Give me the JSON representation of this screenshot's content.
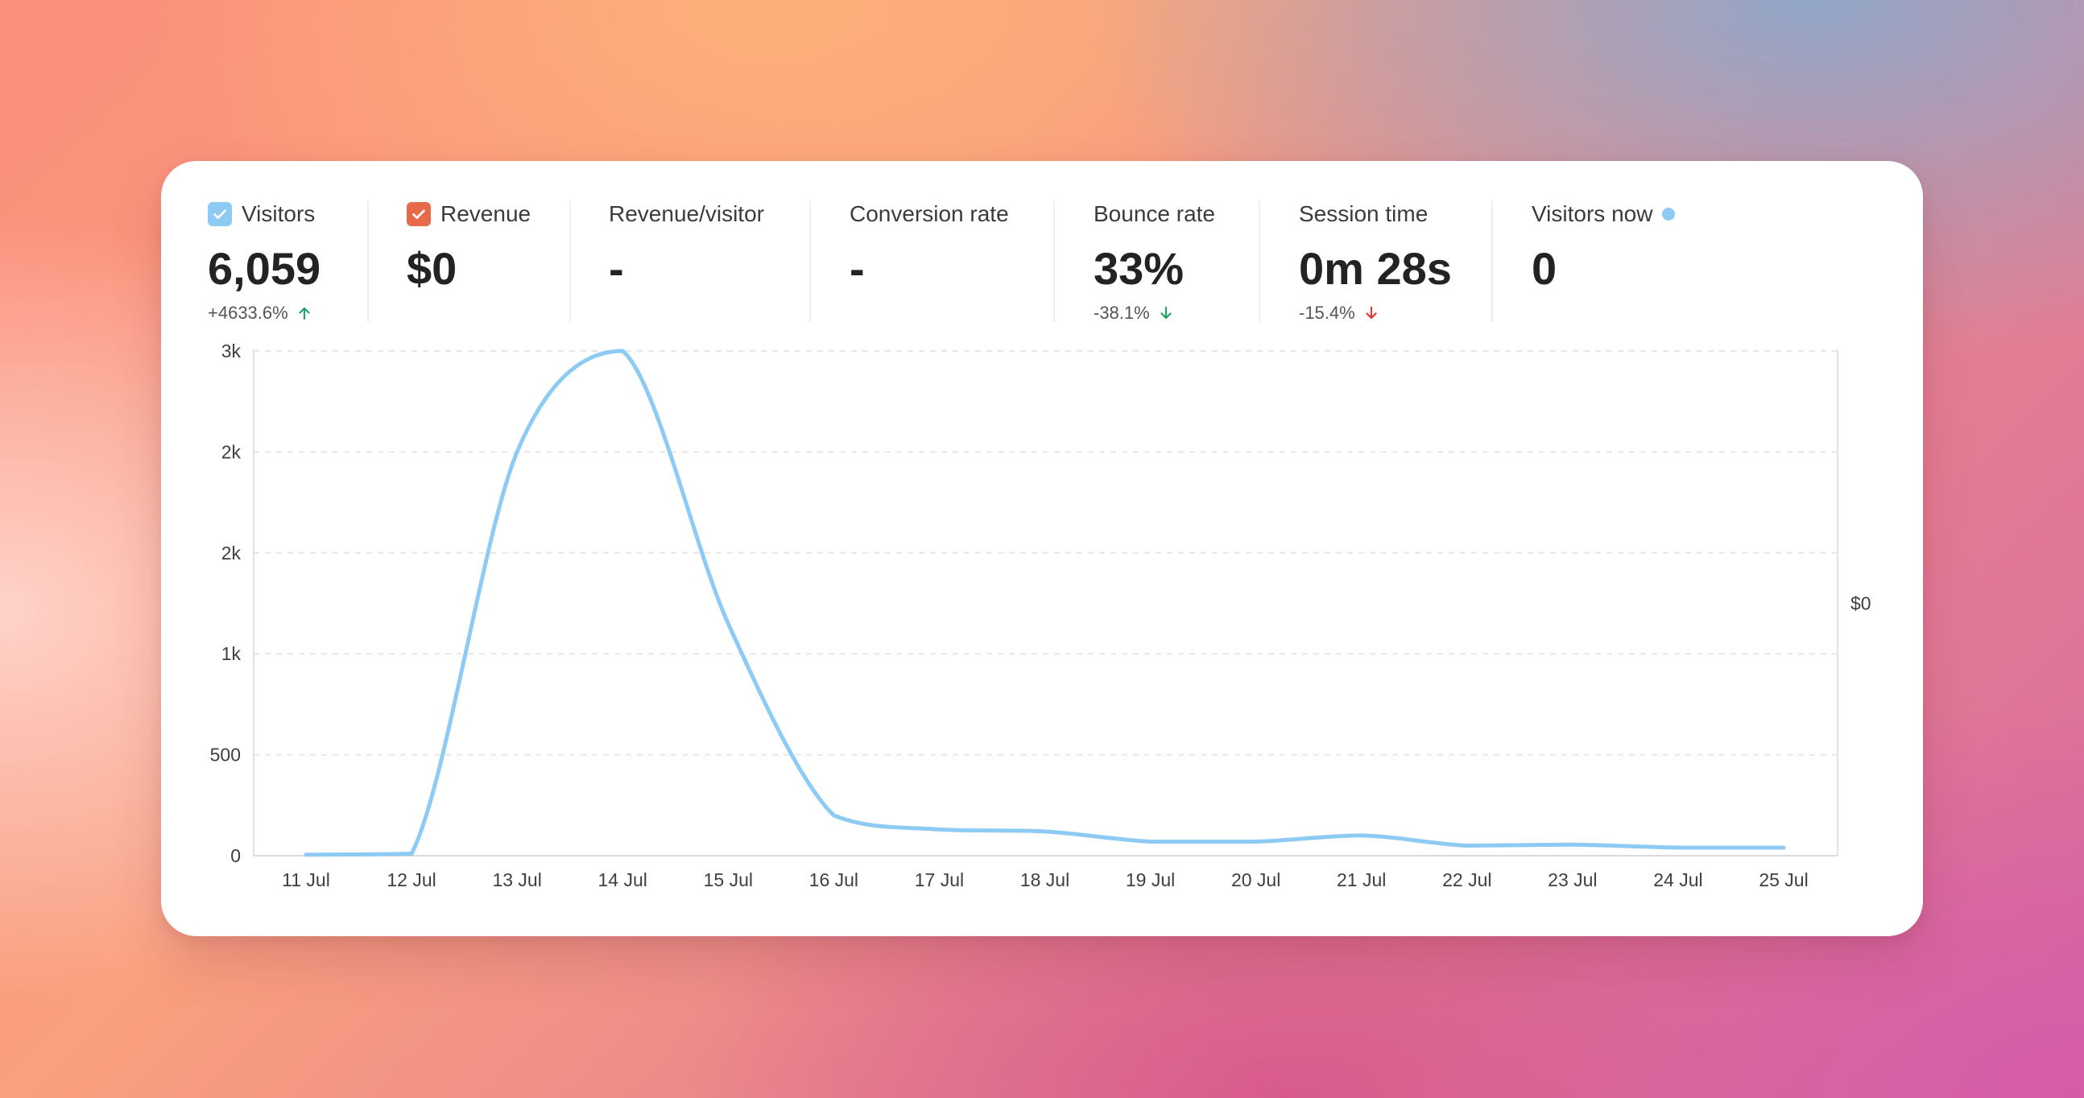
{
  "colors": {
    "visitors_accent": "#8ecbf4",
    "revenue_accent": "#e76a4a",
    "delta_up": "#1fa463",
    "delta_down_bad": "#d93a3a",
    "live_dot": "#8ecbf4"
  },
  "metrics": {
    "visitors": {
      "label": "Visitors",
      "value": "6,059",
      "delta": "+4633.6%",
      "delta_direction": "up",
      "checked": true
    },
    "revenue": {
      "label": "Revenue",
      "value": "$0",
      "checked": true
    },
    "revenue_per_visitor": {
      "label": "Revenue/visitor",
      "value": "-"
    },
    "conversion_rate": {
      "label": "Conversion rate",
      "value": "-"
    },
    "bounce_rate": {
      "label": "Bounce rate",
      "value": "33%",
      "delta": "-38.1%",
      "delta_direction": "down"
    },
    "session_time": {
      "label": "Session time",
      "value": "0m 28s",
      "delta": "-15.4%",
      "delta_direction": "down"
    },
    "visitors_now": {
      "label": "Visitors now",
      "value": "0"
    }
  },
  "chart_data": {
    "type": "line",
    "x": [
      "11 Jul",
      "12 Jul",
      "13 Jul",
      "14 Jul",
      "15 Jul",
      "16 Jul",
      "17 Jul",
      "18 Jul",
      "19 Jul",
      "20 Jul",
      "21 Jul",
      "22 Jul",
      "23 Jul",
      "24 Jul",
      "25 Jul"
    ],
    "series": [
      {
        "name": "Visitors",
        "values": [
          5,
          10,
          2000,
          2500,
          1150,
          200,
          130,
          120,
          70,
          70,
          100,
          50,
          55,
          40,
          40
        ]
      }
    ],
    "y_ticks": [
      {
        "label": "0",
        "value": 0
      },
      {
        "label": "500",
        "value": 500
      },
      {
        "label": "1k",
        "value": 1000
      },
      {
        "label": "2k",
        "value": 1500
      },
      {
        "label": "2k",
        "value": 2000
      },
      {
        "label": "3k",
        "value": 2500
      }
    ],
    "ylim": [
      0,
      2500
    ],
    "right_axis_label": "$0",
    "grid": true
  }
}
